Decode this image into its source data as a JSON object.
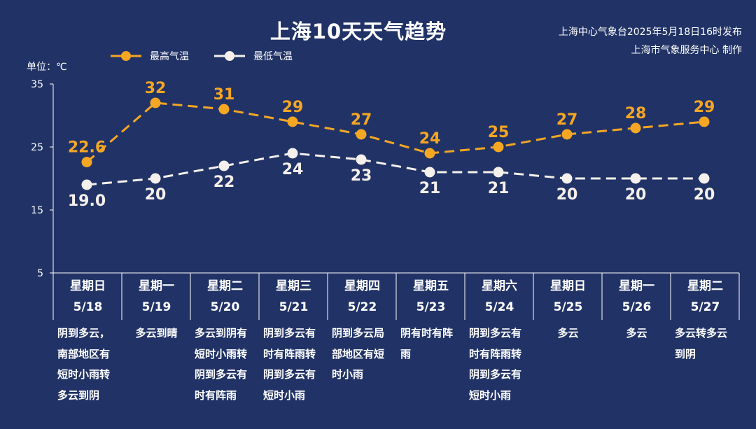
{
  "title": "上海10天天气趋势",
  "publisher": {
    "line1": "上海中心气象台2025年5月18日16时发布",
    "line2": "上海市气象服务中心 制作"
  },
  "unit_label": "单位：℃",
  "colors": {
    "background": "#213366",
    "high": "#F5A623",
    "low": "#F5F0EB",
    "axis": "#FFFFFF"
  },
  "chart_data": {
    "type": "line",
    "title": "上海10天天气趋势",
    "ylabel": "单位：℃",
    "ylim": [
      5,
      35
    ],
    "yticks": [
      5,
      15,
      25,
      35
    ],
    "grid": false,
    "legend_position": "top-left",
    "categories": [
      "5/18",
      "5/19",
      "5/20",
      "5/21",
      "5/22",
      "5/23",
      "5/24",
      "5/25",
      "5/26",
      "5/27"
    ],
    "series": [
      {
        "name": "最高气温",
        "values": [
          22.6,
          32,
          31,
          29,
          27,
          24,
          25,
          27,
          28,
          29
        ],
        "labels": [
          "22.6",
          "32",
          "31",
          "29",
          "27",
          "24",
          "25",
          "27",
          "28",
          "29"
        ]
      },
      {
        "name": "最低气温",
        "values": [
          19.0,
          20,
          22,
          24,
          23,
          21,
          21,
          20,
          20,
          20
        ],
        "labels": [
          "19.0",
          "20",
          "22",
          "24",
          "23",
          "21",
          "21",
          "20",
          "20",
          "20"
        ]
      }
    ]
  },
  "days": [
    {
      "weekday": "星期日",
      "date": "5/18",
      "desc": "阴到多云，南部地区有短时小雨转多云到阴"
    },
    {
      "weekday": "星期一",
      "date": "5/19",
      "desc": "多云到晴"
    },
    {
      "weekday": "星期二",
      "date": "5/20",
      "desc": "多云到阴有短时小雨转阴到多云有时有阵雨"
    },
    {
      "weekday": "星期三",
      "date": "5/21",
      "desc": "阴到多云有时有阵雨转阴到多云有短时小雨"
    },
    {
      "weekday": "星期四",
      "date": "5/22",
      "desc": "阴到多云局部地区有短时小雨"
    },
    {
      "weekday": "星期五",
      "date": "5/23",
      "desc": "阴有时有阵雨"
    },
    {
      "weekday": "星期六",
      "date": "5/24",
      "desc": "阴到多云有时有阵雨转阴到多云有短时小雨"
    },
    {
      "weekday": "星期日",
      "date": "5/25",
      "desc": "多云"
    },
    {
      "weekday": "星期一",
      "date": "5/26",
      "desc": "多云"
    },
    {
      "weekday": "星期二",
      "date": "5/27",
      "desc": "多云转多云到阴"
    }
  ]
}
